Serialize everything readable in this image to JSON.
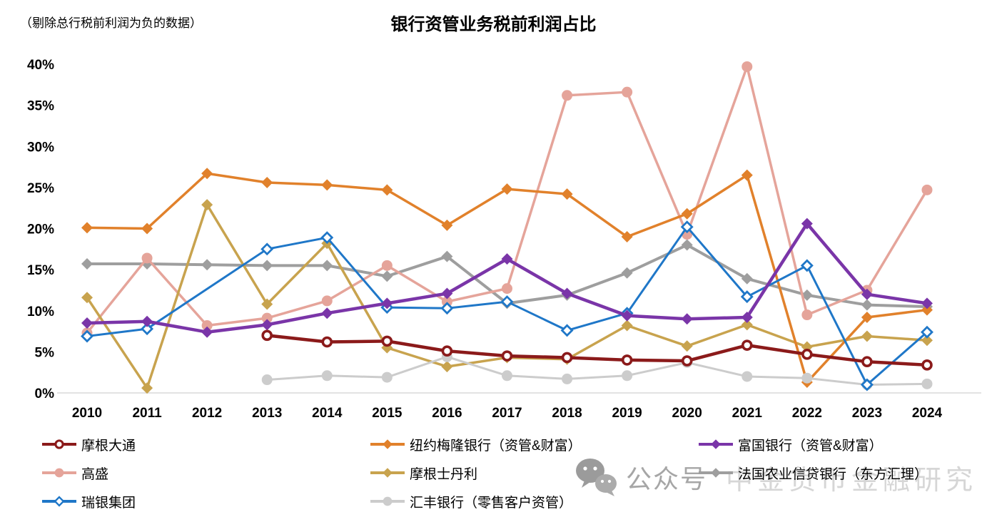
{
  "title": "银行资管业务税前利润占比",
  "note": "（剔除总行税前利润为负的数据）",
  "watermark": {
    "label": "公众号",
    "text": "中金货币金融研究",
    "icon": "wechat-icon"
  },
  "axis": {
    "y_tick_labels": [
      "40%",
      "35%",
      "30%",
      "25%",
      "20%",
      "15%",
      "10%",
      "5%",
      "0%"
    ],
    "x_tick_labels": [
      "2010",
      "2011",
      "2012",
      "2013",
      "2014",
      "2015",
      "2016",
      "2017",
      "2018",
      "2019",
      "2020",
      "2021",
      "2022",
      "2023",
      "2024"
    ]
  },
  "chart_data": {
    "type": "line",
    "x": [
      2010,
      2011,
      2012,
      2013,
      2014,
      2015,
      2016,
      2017,
      2018,
      2019,
      2020,
      2021,
      2022,
      2023,
      2024
    ],
    "ylim": [
      0,
      40
    ],
    "y_tick_step": 5,
    "grid": false,
    "legend_position": "bottom",
    "note": "null values = excluded years (negative total pre-tax profit or no data)",
    "series": [
      {
        "id": "jpm",
        "name": "摩根大通",
        "color": "#8B1A1A",
        "marker": "open-circle",
        "line_width": 4.5,
        "values": [
          null,
          null,
          null,
          7.0,
          6.2,
          6.3,
          5.1,
          4.5,
          4.3,
          4.0,
          3.9,
          5.8,
          4.7,
          3.8,
          3.4
        ]
      },
      {
        "id": "bny-mellon",
        "name": "纽约梅隆银行（资管&财富）",
        "color": "#E1812B",
        "marker": "diamond",
        "line_width": 3.5,
        "values": [
          20.1,
          20.0,
          26.7,
          25.6,
          25.3,
          24.7,
          20.4,
          24.8,
          24.2,
          19.0,
          21.8,
          26.5,
          1.3,
          9.2,
          10.1
        ]
      },
      {
        "id": "wells-fargo",
        "name": "富国银行（资管&财富）",
        "color": "#7A35A8",
        "marker": "diamond",
        "line_width": 4.5,
        "values": [
          8.5,
          8.7,
          7.4,
          8.3,
          9.7,
          10.9,
          12.1,
          16.3,
          12.1,
          9.4,
          9.0,
          9.2,
          20.6,
          12.0,
          10.9
        ]
      },
      {
        "id": "goldman",
        "name": "高盛",
        "color": "#E5A49A",
        "marker": "circle",
        "line_width": 3.5,
        "values": [
          7.3,
          16.4,
          8.2,
          9.1,
          11.2,
          15.5,
          11.1,
          12.7,
          36.2,
          36.6,
          19.3,
          39.7,
          9.5,
          12.5,
          24.7
        ]
      },
      {
        "id": "morgan-stanley",
        "name": "摩根士丹利",
        "color": "#C8A34E",
        "marker": "diamond",
        "line_width": 3.5,
        "values": [
          11.6,
          0.6,
          22.9,
          10.8,
          18.2,
          5.5,
          3.2,
          4.3,
          4.1,
          8.2,
          5.7,
          8.3,
          5.6,
          6.9,
          6.4
        ]
      },
      {
        "id": "credit-agricole",
        "name": "法国农业信贷银行（东方汇理）",
        "color": "#9E9E9E",
        "marker": "diamond",
        "line_width": 4,
        "values": [
          15.7,
          15.7,
          15.6,
          15.5,
          15.5,
          14.2,
          16.6,
          10.9,
          11.9,
          14.6,
          18.0,
          13.9,
          11.9,
          10.7,
          10.5
        ]
      },
      {
        "id": "ubs",
        "name": "瑞银集团",
        "color": "#1F77C8",
        "marker": "open-diamond",
        "line_width": 3,
        "values": [
          6.9,
          7.8,
          null,
          17.5,
          18.9,
          10.4,
          10.3,
          11.1,
          7.6,
          9.7,
          20.2,
          11.7,
          15.5,
          1.0,
          7.4
        ]
      },
      {
        "id": "hsbc",
        "name": "汇丰银行（零售客户资管）",
        "color": "#CCCCCC",
        "marker": "circle",
        "line_width": 3,
        "values": [
          null,
          null,
          null,
          1.6,
          2.1,
          1.9,
          4.4,
          2.1,
          1.7,
          2.1,
          3.7,
          2.0,
          1.8,
          1.0,
          1.1
        ]
      }
    ],
    "draw_order": [
      "credit-agricole",
      "goldman",
      "morgan-stanley",
      "bny-mellon",
      "hsbc",
      "ubs",
      "wells-fargo",
      "jpm"
    ]
  }
}
